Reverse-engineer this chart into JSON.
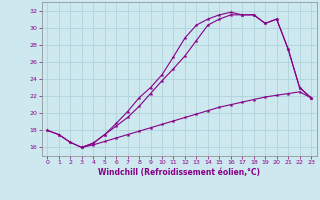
{
  "xlabel": "Windchill (Refroidissement éolien,°C)",
  "background_color": "#cde8ee",
  "grid_color": "#aad0d8",
  "line_color": "#880088",
  "xlim_min": -0.5,
  "xlim_max": 23.5,
  "ylim_min": 15.0,
  "ylim_max": 33.0,
  "yticks": [
    16,
    18,
    20,
    22,
    24,
    26,
    28,
    30,
    32
  ],
  "xticks": [
    0,
    1,
    2,
    3,
    4,
    5,
    6,
    7,
    8,
    9,
    10,
    11,
    12,
    13,
    14,
    15,
    16,
    17,
    18,
    19,
    20,
    21,
    22,
    23
  ],
  "line1_x": [
    0,
    1,
    2,
    3,
    4,
    5,
    6,
    7,
    8,
    9,
    10,
    11,
    12,
    13,
    14,
    15,
    16,
    17,
    18,
    19,
    20,
    21,
    22,
    23
  ],
  "line1_y": [
    18.0,
    17.5,
    16.6,
    16.0,
    16.3,
    16.7,
    17.1,
    17.5,
    17.9,
    18.3,
    18.7,
    19.1,
    19.5,
    19.9,
    20.3,
    20.7,
    21.0,
    21.3,
    21.6,
    21.9,
    22.1,
    22.3,
    22.5,
    21.8
  ],
  "line2_x": [
    0,
    1,
    2,
    3,
    4,
    5,
    6,
    7,
    8,
    9,
    10,
    11,
    12,
    13,
    14,
    15,
    16,
    17,
    18,
    19,
    20,
    21,
    22,
    23
  ],
  "line2_y": [
    18.0,
    17.5,
    16.6,
    16.0,
    16.5,
    17.5,
    18.5,
    19.5,
    20.8,
    22.3,
    23.8,
    25.2,
    26.7,
    28.5,
    30.3,
    31.0,
    31.5,
    31.5,
    31.5,
    30.5,
    31.0,
    27.5,
    23.0,
    21.8
  ],
  "line3_x": [
    3,
    4,
    5,
    6,
    7,
    8,
    9,
    10,
    11,
    12,
    13,
    14,
    15,
    16,
    17,
    18,
    19,
    20,
    21,
    22,
    23
  ],
  "line3_y": [
    16.0,
    16.5,
    17.5,
    18.8,
    20.2,
    21.8,
    23.0,
    24.5,
    26.6,
    28.8,
    30.3,
    31.0,
    31.5,
    31.8,
    31.5,
    31.5,
    30.5,
    31.0,
    27.5,
    23.0,
    21.8
  ]
}
